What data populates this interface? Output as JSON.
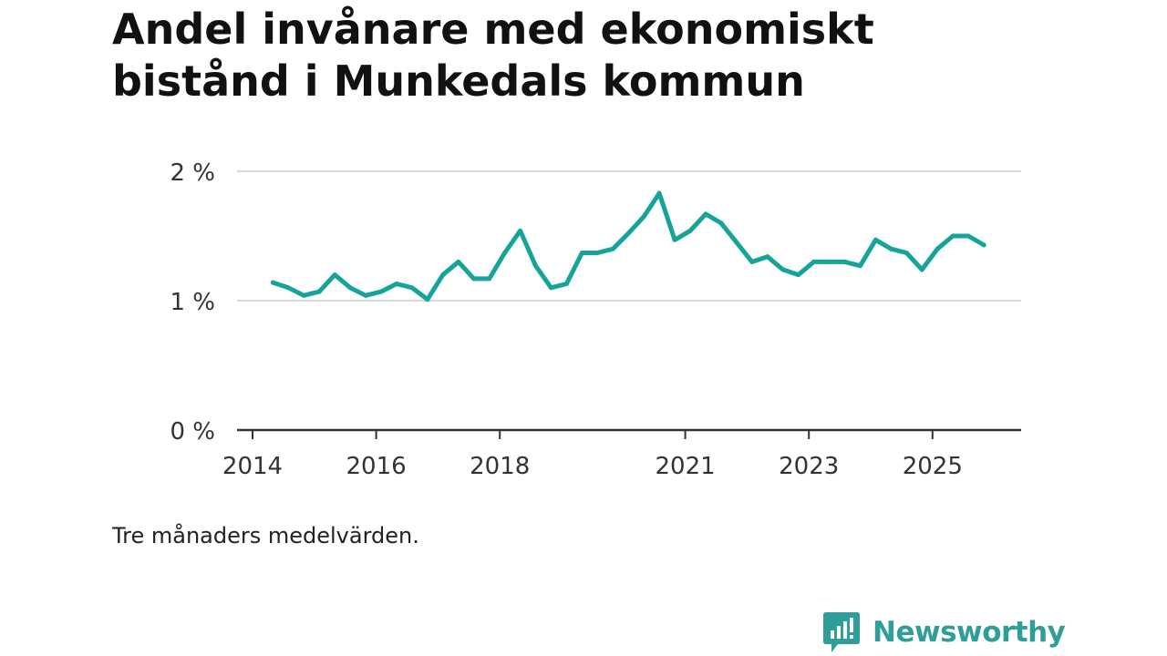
{
  "title": "Andel invånare med ekonomiskt bistånd i Munkedals kommun",
  "note": "Tre månaders medelvärden.",
  "brand": {
    "name": "Newsworthy",
    "icon": "newsworthy-logo-icon",
    "color": "#2f9e98"
  },
  "chart_data": {
    "type": "line",
    "title": "Andel invånare med ekonomiskt bistånd i Munkedals kommun",
    "xlabel": "",
    "ylabel": "",
    "y_unit": "%",
    "ylim": [
      0,
      2
    ],
    "y_ticks": [
      {
        "value": 0,
        "label": "0 %"
      },
      {
        "value": 1,
        "label": "1 %"
      },
      {
        "value": 2,
        "label": "2 %"
      }
    ],
    "xlim": [
      2014,
      2026.2
    ],
    "x_ticks": [
      {
        "value": 2014,
        "label": "2014"
      },
      {
        "value": 2016,
        "label": "2016"
      },
      {
        "value": 2018,
        "label": "2018"
      },
      {
        "value": 2021,
        "label": "2021"
      },
      {
        "value": 2023,
        "label": "2023"
      },
      {
        "value": 2025,
        "label": "2025"
      }
    ],
    "grid": true,
    "color": "#16a49a",
    "series": [
      {
        "name": "Andel invånare med ekonomiskt bistånd",
        "x": [
          2014.33,
          2014.58,
          2014.83,
          2015.08,
          2015.33,
          2015.58,
          2015.83,
          2016.08,
          2016.33,
          2016.58,
          2016.83,
          2017.08,
          2017.33,
          2017.58,
          2017.83,
          2018.08,
          2018.33,
          2018.58,
          2018.83,
          2019.08,
          2019.33,
          2019.58,
          2019.83,
          2020.08,
          2020.33,
          2020.58,
          2020.83,
          2021.08,
          2021.33,
          2021.58,
          2021.83,
          2022.08,
          2022.33,
          2022.58,
          2022.83,
          2023.08,
          2023.33,
          2023.58,
          2023.83,
          2024.08,
          2024.33,
          2024.58,
          2024.83,
          2025.08,
          2025.33,
          2025.58,
          2025.83
        ],
        "values": [
          1.14,
          1.1,
          1.04,
          1.07,
          1.2,
          1.1,
          1.04,
          1.07,
          1.13,
          1.1,
          1.01,
          1.2,
          1.3,
          1.17,
          1.17,
          1.37,
          1.54,
          1.27,
          1.1,
          1.13,
          1.37,
          1.37,
          1.4,
          1.52,
          1.65,
          1.83,
          1.47,
          1.54,
          1.67,
          1.6,
          1.45,
          1.3,
          1.34,
          1.24,
          1.2,
          1.3,
          1.3,
          1.3,
          1.27,
          1.47,
          1.4,
          1.37,
          1.24,
          1.4,
          1.5,
          1.5,
          1.43
        ]
      }
    ]
  }
}
